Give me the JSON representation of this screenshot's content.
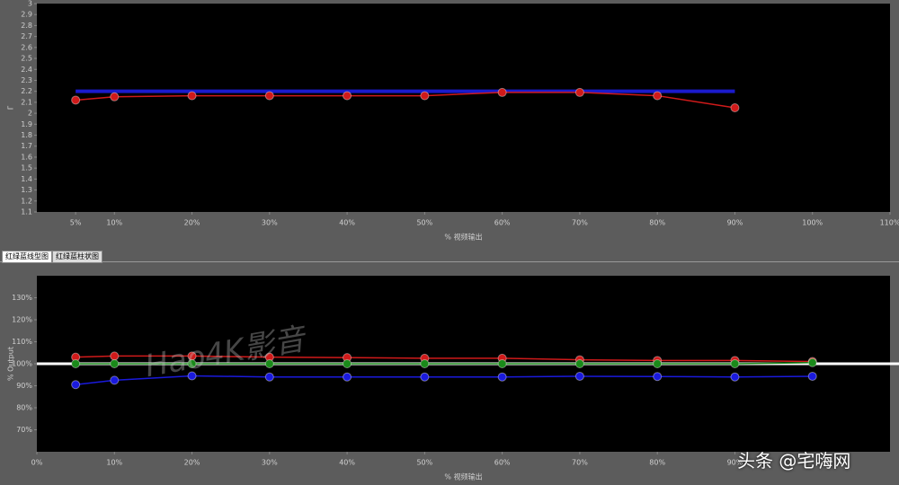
{
  "chart_data": [
    {
      "type": "line",
      "x_label": "% 视频输出",
      "y_label": "Γ",
      "xlim": [
        0,
        110
      ],
      "ylim": [
        1.1,
        3
      ],
      "xticks": [
        {
          "value": 5,
          "label": "5%"
        },
        {
          "value": 10,
          "label": "10%"
        },
        {
          "value": 20,
          "label": "20%"
        },
        {
          "value": 30,
          "label": "30%"
        },
        {
          "value": 40,
          "label": "40%"
        },
        {
          "value": 50,
          "label": "50%"
        },
        {
          "value": 60,
          "label": "60%"
        },
        {
          "value": 70,
          "label": "70%"
        },
        {
          "value": 80,
          "label": "80%"
        },
        {
          "value": 90,
          "label": "90%"
        },
        {
          "value": 100,
          "label": "100%"
        },
        {
          "value": 110,
          "label": "110%"
        }
      ],
      "yticks": [
        1.1,
        1.2,
        1.3,
        1.4,
        1.5,
        1.6,
        1.7,
        1.8,
        1.9,
        2,
        2.1,
        2.2,
        2.3,
        2.4,
        2.5,
        2.6,
        2.7,
        2.8,
        2.9,
        3
      ],
      "series": [
        {
          "color": "#1a1acc",
          "markers": false,
          "x": [
            5,
            90
          ],
          "values": [
            2.2,
            2.2
          ]
        },
        {
          "color": "#d01a1a",
          "markers": true,
          "x": [
            5,
            10,
            20,
            30,
            40,
            50,
            60,
            70,
            80,
            90
          ],
          "values": [
            2.12,
            2.15,
            2.16,
            2.16,
            2.16,
            2.16,
            2.19,
            2.19,
            2.16,
            2.05
          ]
        }
      ]
    },
    {
      "type": "line",
      "x_label": "% 视频输出",
      "y_label": "% Output",
      "xlim": [
        0,
        110
      ],
      "ylim": [
        60,
        140
      ],
      "reference_line": 100,
      "xticks": [
        {
          "value": 0,
          "label": "0%"
        },
        {
          "value": 10,
          "label": "10%"
        },
        {
          "value": 20,
          "label": "20%"
        },
        {
          "value": 30,
          "label": "30%"
        },
        {
          "value": 40,
          "label": "40%"
        },
        {
          "value": 50,
          "label": "50%"
        },
        {
          "value": 60,
          "label": "60%"
        },
        {
          "value": 70,
          "label": "70%"
        },
        {
          "value": 80,
          "label": "80%"
        },
        {
          "value": 90,
          "label": "90%"
        }
      ],
      "yticks": [
        {
          "value": 70,
          "label": "70%"
        },
        {
          "value": 80,
          "label": "80%"
        },
        {
          "value": 90,
          "label": "90%"
        },
        {
          "value": 100,
          "label": "100%"
        },
        {
          "value": 110,
          "label": "110%"
        },
        {
          "value": 120,
          "label": "120%"
        },
        {
          "value": 130,
          "label": "130%"
        }
      ],
      "series": [
        {
          "color": "#d01a1a",
          "markers": true,
          "x": [
            5,
            10,
            20,
            30,
            40,
            50,
            60,
            70,
            80,
            90,
            100
          ],
          "values": [
            103,
            103.5,
            103.5,
            103,
            102.8,
            102.5,
            102.5,
            101.8,
            101.5,
            101.5,
            101
          ]
        },
        {
          "color": "#1a8a1a",
          "markers": true,
          "x": [
            5,
            10,
            20,
            30,
            40,
            50,
            60,
            70,
            80,
            90,
            100
          ],
          "values": [
            100,
            100,
            100,
            100,
            100,
            100,
            100,
            100,
            100,
            100,
            100.5
          ]
        },
        {
          "color": "#1a1add",
          "markers": true,
          "x": [
            5,
            10,
            20,
            30,
            40,
            50,
            60,
            70,
            80,
            90,
            100
          ],
          "values": [
            90.5,
            92.5,
            94.5,
            94,
            94,
            94,
            94,
            94.3,
            94.2,
            94,
            94.3
          ]
        }
      ]
    }
  ],
  "tabs": [
    "红绿蓝线型图",
    "红绿蓝柱状图"
  ],
  "watermarks": [
    "Hao4K影音",
    "头条 @宅嗨网"
  ]
}
